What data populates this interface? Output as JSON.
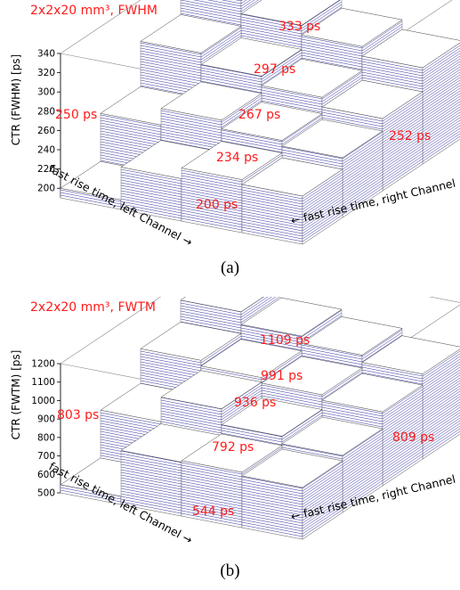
{
  "chart_data": [
    {
      "type": "bar3d",
      "title": "2x2x20 mm³, FWHM",
      "zlabel": "CTR (FWHM) [ps]",
      "xlabel": "fast rise time, left Channel →",
      "ylabel": "← fast rise time, right Channel",
      "zlim": [
        190,
        340
      ],
      "zticks": [
        "200",
        "220",
        "240",
        "260",
        "280",
        "300",
        "320",
        "340"
      ],
      "grid": [
        [
          333,
          310,
          300,
          290
        ],
        [
          297,
          285,
          275,
          265
        ],
        [
          250,
          267,
          258,
          252
        ],
        [
          200,
          234,
          245,
          240
        ]
      ],
      "labels": [
        "333 ps",
        "297 ps",
        "250 ps",
        "267 ps",
        "252 ps",
        "234 ps",
        "200 ps"
      ],
      "caption": "(a)"
    },
    {
      "type": "bar3d",
      "title": "2x2x20 mm³, FWTM",
      "zlabel": "CTR (FWTM) [ps]",
      "xlabel": "fast rise time, left Channel →",
      "ylabel": "← fast rise time, right Channel",
      "zlim": [
        500,
        1200
      ],
      "zticks": [
        "500",
        "600",
        "700",
        "800",
        "900",
        "1000",
        "1100",
        "1200"
      ],
      "grid": [
        [
          1109,
          1040,
          1000,
          960
        ],
        [
          991,
          960,
          930,
          900
        ],
        [
          803,
          936,
          850,
          809
        ],
        [
          544,
          792,
          800,
          780
        ]
      ],
      "labels": [
        "1109 ps",
        "991 ps",
        "936 ps",
        "803 ps",
        "792 ps",
        "809 ps",
        "544 ps"
      ],
      "caption": "(b)"
    }
  ],
  "colors": {
    "label": "#ff1a1a",
    "stripe": "#2e2e9e",
    "frame": "#888888"
  }
}
